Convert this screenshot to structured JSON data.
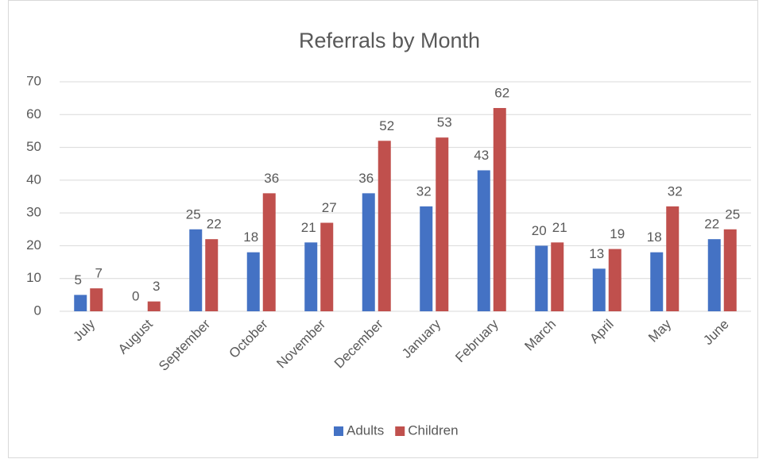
{
  "chart_data": {
    "type": "bar",
    "title": "Referrals by Month",
    "categories": [
      "July",
      "August",
      "September",
      "October",
      "November",
      "December",
      "January",
      "February",
      "March",
      "April",
      "May",
      "June"
    ],
    "series": [
      {
        "name": "Adults",
        "color": "#4472c4",
        "values": [
          5,
          0,
          25,
          18,
          21,
          36,
          32,
          43,
          20,
          13,
          18,
          22
        ]
      },
      {
        "name": "Children",
        "color": "#c0504d",
        "values": [
          7,
          3,
          22,
          36,
          27,
          52,
          53,
          62,
          21,
          19,
          32,
          25
        ]
      }
    ],
    "ylim": [
      0,
      70
    ],
    "yticks": [
      0,
      10,
      20,
      30,
      40,
      50,
      60,
      70
    ],
    "grid": true,
    "legend": "bottom"
  }
}
